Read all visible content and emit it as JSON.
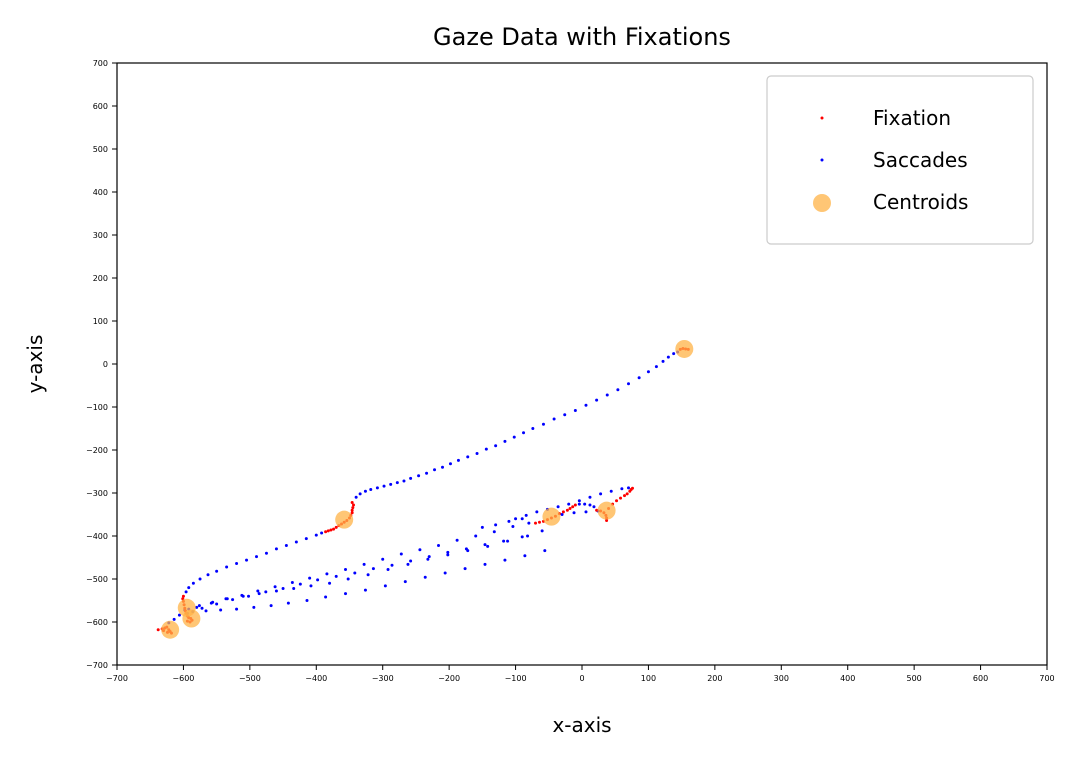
{
  "chart_data": {
    "type": "scatter",
    "title": "Gaze Data with Fixations",
    "xlabel": "x-axis",
    "ylabel": "y-axis",
    "xlim": [
      -700,
      700
    ],
    "ylim": [
      -700,
      700
    ],
    "x_ticks": [
      -700,
      -600,
      -500,
      -400,
      -300,
      -200,
      -100,
      0,
      100,
      200,
      300,
      400,
      500,
      600,
      700
    ],
    "y_ticks": [
      -700,
      -600,
      -500,
      -400,
      -300,
      -200,
      -100,
      0,
      100,
      200,
      300,
      400,
      500,
      600,
      700
    ],
    "grid": false,
    "legend_position": "top-right",
    "series": [
      {
        "name": "Fixation",
        "color": "#ff0000",
        "marker": "dot",
        "points": [
          [
            -638,
            -618
          ],
          [
            -632,
            -616
          ],
          [
            -628,
            -614
          ],
          [
            -625,
            -612
          ],
          [
            -622,
            -618
          ],
          [
            -620,
            -622
          ],
          [
            -618,
            -626
          ],
          [
            -624,
            -624
          ],
          [
            -630,
            -620
          ],
          [
            -600,
            -540
          ],
          [
            -601,
            -546
          ],
          [
            -600,
            -552
          ],
          [
            -599,
            -560
          ],
          [
            -598,
            -568
          ],
          [
            -597,
            -574
          ],
          [
            -596,
            -580
          ],
          [
            -594,
            -586
          ],
          [
            -592,
            -590
          ],
          [
            -589,
            -592
          ],
          [
            -587,
            -596
          ],
          [
            -590,
            -600
          ],
          [
            -594,
            -598
          ],
          [
            -386,
            -390
          ],
          [
            -382,
            -388
          ],
          [
            -378,
            -386
          ],
          [
            -374,
            -384
          ],
          [
            -370,
            -380
          ],
          [
            -366,
            -376
          ],
          [
            -362,
            -372
          ],
          [
            -358,
            -368
          ],
          [
            -354,
            -364
          ],
          [
            -350,
            -358
          ],
          [
            -348,
            -352
          ],
          [
            -346,
            -346
          ],
          [
            -346,
            -340
          ],
          [
            -345,
            -334
          ],
          [
            -344,
            -328
          ],
          [
            -346,
            -322
          ],
          [
            -70,
            -370
          ],
          [
            -64,
            -368
          ],
          [
            -58,
            -366
          ],
          [
            -52,
            -362
          ],
          [
            -46,
            -358
          ],
          [
            -40,
            -354
          ],
          [
            -34,
            -348
          ],
          [
            -28,
            -344
          ],
          [
            -22,
            -340
          ],
          [
            -18,
            -336
          ],
          [
            -14,
            -332
          ],
          [
            -10,
            -328
          ],
          [
            22,
            -340
          ],
          [
            28,
            -342
          ],
          [
            33,
            -346
          ],
          [
            36,
            -352
          ],
          [
            37,
            -358
          ],
          [
            37,
            -364
          ],
          [
            40,
            -336
          ],
          [
            46,
            -326
          ],
          [
            52,
            -318
          ],
          [
            58,
            -312
          ],
          [
            64,
            -306
          ],
          [
            68,
            -302
          ],
          [
            72,
            -296
          ],
          [
            74,
            -292
          ],
          [
            76,
            -289
          ],
          [
            148,
            34
          ],
          [
            152,
            36
          ],
          [
            156,
            35
          ],
          [
            160,
            34
          ]
        ]
      },
      {
        "name": "Saccades",
        "color": "#0000ff",
        "marker": "dot",
        "points": [
          [
            -622,
            -602
          ],
          [
            -614,
            -594
          ],
          [
            -606,
            -584
          ],
          [
            -598,
            -572
          ],
          [
            -596,
            -530
          ],
          [
            -592,
            -520
          ],
          [
            -585,
            -510
          ],
          [
            -575,
            -500
          ],
          [
            -563,
            -490
          ],
          [
            -550,
            -482
          ],
          [
            -535,
            -472
          ],
          [
            -520,
            -464
          ],
          [
            -505,
            -456
          ],
          [
            -490,
            -448
          ],
          [
            -475,
            -440
          ],
          [
            -460,
            -430
          ],
          [
            -445,
            -422
          ],
          [
            -430,
            -414
          ],
          [
            -415,
            -406
          ],
          [
            -400,
            -398
          ],
          [
            -392,
            -393
          ],
          [
            -340,
            -310
          ],
          [
            -334,
            -302
          ],
          [
            -326,
            -296
          ],
          [
            -318,
            -292
          ],
          [
            -308,
            -288
          ],
          [
            -298,
            -284
          ],
          [
            -288,
            -280
          ],
          [
            -278,
            -276
          ],
          [
            -268,
            -272
          ],
          [
            -258,
            -266
          ],
          [
            -246,
            -260
          ],
          [
            -234,
            -254
          ],
          [
            -222,
            -246
          ],
          [
            -210,
            -240
          ],
          [
            -198,
            -232
          ],
          [
            -186,
            -224
          ],
          [
            -172,
            -216
          ],
          [
            -158,
            -208
          ],
          [
            -144,
            -198
          ],
          [
            -130,
            -190
          ],
          [
            -116,
            -180
          ],
          [
            -102,
            -170
          ],
          [
            -88,
            -160
          ],
          [
            -74,
            -150
          ],
          [
            -58,
            -140
          ],
          [
            -42,
            -128
          ],
          [
            -26,
            -118
          ],
          [
            -10,
            -108
          ],
          [
            6,
            -96
          ],
          [
            22,
            -84
          ],
          [
            38,
            -72
          ],
          [
            54,
            -60
          ],
          [
            70,
            -46
          ],
          [
            86,
            -32
          ],
          [
            100,
            -18
          ],
          [
            112,
            -6
          ],
          [
            122,
            6
          ],
          [
            130,
            16
          ],
          [
            138,
            24
          ],
          [
            144,
            28
          ],
          [
            -592,
            -570
          ],
          [
            -576,
            -562
          ],
          [
            -556,
            -554
          ],
          [
            -534,
            -546
          ],
          [
            -510,
            -540
          ],
          [
            -486,
            -534
          ],
          [
            -460,
            -528
          ],
          [
            -434,
            -522
          ],
          [
            -408,
            -516
          ],
          [
            -380,
            -510
          ],
          [
            -352,
            -500
          ],
          [
            -322,
            -490
          ],
          [
            -292,
            -478
          ],
          [
            -262,
            -466
          ],
          [
            -232,
            -454
          ],
          [
            -202,
            -444
          ],
          [
            -172,
            -434
          ],
          [
            -142,
            -424
          ],
          [
            -112,
            -412
          ],
          [
            -82,
            -400
          ],
          [
            -60,
            -388
          ],
          [
            -586,
            -576
          ],
          [
            -566,
            -574
          ],
          [
            -544,
            -572
          ],
          [
            -520,
            -570
          ],
          [
            -494,
            -566
          ],
          [
            -468,
            -562
          ],
          [
            -442,
            -556
          ],
          [
            -414,
            -550
          ],
          [
            -386,
            -542
          ],
          [
            -356,
            -534
          ],
          [
            -326,
            -526
          ],
          [
            -296,
            -516
          ],
          [
            -266,
            -506
          ],
          [
            -236,
            -496
          ],
          [
            -206,
            -486
          ],
          [
            -176,
            -476
          ],
          [
            -146,
            -466
          ],
          [
            -116,
            -456
          ],
          [
            -86,
            -446
          ],
          [
            -56,
            -434
          ],
          [
            -580,
            -566
          ],
          [
            -558,
            -556
          ],
          [
            -536,
            -546
          ],
          [
            -512,
            -538
          ],
          [
            -488,
            -528
          ],
          [
            -462,
            -518
          ],
          [
            -436,
            -508
          ],
          [
            -410,
            -498
          ],
          [
            -384,
            -488
          ],
          [
            -356,
            -478
          ],
          [
            -328,
            -466
          ],
          [
            -300,
            -454
          ],
          [
            -272,
            -442
          ],
          [
            -244,
            -432
          ],
          [
            -216,
            -422
          ],
          [
            -188,
            -410
          ],
          [
            -160,
            -400
          ],
          [
            -132,
            -390
          ],
          [
            -104,
            -378
          ],
          [
            -80,
            -370
          ],
          [
            -594,
            -580
          ],
          [
            -572,
            -568
          ],
          [
            -550,
            -558
          ],
          [
            -526,
            -548
          ],
          [
            -502,
            -540
          ],
          [
            -476,
            -530
          ],
          [
            -450,
            -522
          ],
          [
            -424,
            -512
          ],
          [
            -398,
            -502
          ],
          [
            -370,
            -494
          ],
          [
            -342,
            -486
          ],
          [
            -314,
            -476
          ],
          [
            -286,
            -468
          ],
          [
            -258,
            -458
          ],
          [
            -230,
            -448
          ],
          [
            -202,
            -438
          ],
          [
            -174,
            -430
          ],
          [
            -146,
            -420
          ],
          [
            -118,
            -412
          ],
          [
            -90,
            -402
          ],
          [
            -4,
            -326
          ],
          [
            4,
            -326
          ],
          [
            12,
            -328
          ],
          [
            18,
            -332
          ],
          [
            -30,
            -350
          ],
          [
            -12,
            -346
          ],
          [
            6,
            -344
          ],
          [
            24,
            -342
          ],
          [
            -100,
            -360
          ],
          [
            -84,
            -352
          ],
          [
            -68,
            -344
          ],
          [
            -52,
            -338
          ],
          [
            -36,
            -332
          ],
          [
            -20,
            -326
          ],
          [
            -4,
            -318
          ],
          [
            12,
            -310
          ],
          [
            28,
            -302
          ],
          [
            44,
            -296
          ],
          [
            60,
            -290
          ],
          [
            70,
            -288
          ],
          [
            -150,
            -380
          ],
          [
            -130,
            -374
          ],
          [
            -110,
            -366
          ],
          [
            -90,
            -360
          ]
        ]
      },
      {
        "name": "Centroids",
        "color": "#ffb347",
        "marker": "circle",
        "points": [
          [
            154,
            35
          ],
          [
            -358,
            -362
          ],
          [
            -46,
            -355
          ],
          [
            37,
            -341
          ],
          [
            -595,
            -567
          ],
          [
            -588,
            -592
          ],
          [
            -620,
            -618
          ]
        ]
      }
    ]
  }
}
